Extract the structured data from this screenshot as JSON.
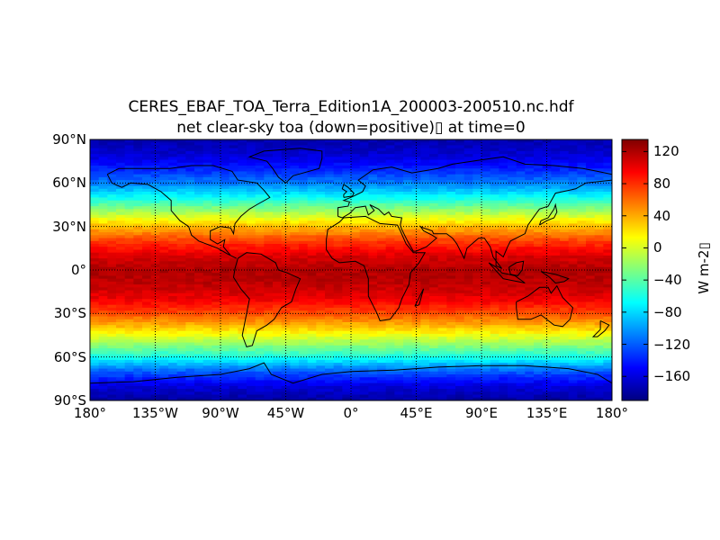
{
  "title": {
    "line1": "CERES_EBAF_TOA_Terra_Edition1A_200003-200510.nc.hdf",
    "line2": "net clear-sky toa (down=positive)▯ at time=0"
  },
  "map": {
    "projection": "cylindrical",
    "lon_range": [
      -180,
      180
    ],
    "lat_range": [
      -90,
      90
    ],
    "grid": true,
    "coastlines": true
  },
  "lat_ticks": [
    {
      "value": 90,
      "label": "90°N"
    },
    {
      "value": 60,
      "label": "60°N"
    },
    {
      "value": 30,
      "label": "30°N"
    },
    {
      "value": 0,
      "label": "0°"
    },
    {
      "value": -30,
      "label": "30°S"
    },
    {
      "value": -60,
      "label": "60°S"
    },
    {
      "value": -90,
      "label": "90°S"
    }
  ],
  "lon_ticks": [
    {
      "value": -180,
      "label": "180°"
    },
    {
      "value": -135,
      "label": "135°W"
    },
    {
      "value": -90,
      "label": "90°W"
    },
    {
      "value": -45,
      "label": "45°W"
    },
    {
      "value": 0,
      "label": "0°"
    },
    {
      "value": 45,
      "label": "45°E"
    },
    {
      "value": 90,
      "label": "90°E"
    },
    {
      "value": 135,
      "label": "135°E"
    },
    {
      "value": 180,
      "label": "180°"
    }
  ],
  "colorbar": {
    "colormap": "jet",
    "range": [
      -190,
      135
    ],
    "units": "W m-2▯",
    "ticks": [
      {
        "value": 120,
        "label": "120"
      },
      {
        "value": 80,
        "label": "80"
      },
      {
        "value": 40,
        "label": "40"
      },
      {
        "value": 0,
        "label": "0"
      },
      {
        "value": -40,
        "label": "−40"
      },
      {
        "value": -80,
        "label": "−80"
      },
      {
        "value": -120,
        "label": "−120"
      },
      {
        "value": -160,
        "label": "−160"
      }
    ]
  },
  "chart_data": {
    "type": "heatmap",
    "title": "CERES_EBAF_TOA_Terra_Edition1A_200003-200510.nc.hdf",
    "subtitle": "net clear-sky toa (down=positive)▯ at time=0",
    "zlabel": "W m-2▯",
    "zlim": [
      -190,
      135
    ],
    "zonal_profile": {
      "lat": [
        90,
        80,
        70,
        60,
        50,
        40,
        30,
        20,
        10,
        0,
        -10,
        -20,
        -30,
        -40,
        -50,
        -60,
        -70,
        -80,
        -90
      ],
      "value": [
        -175,
        -165,
        -140,
        -110,
        -65,
        -15,
        35,
        75,
        105,
        120,
        115,
        100,
        70,
        30,
        -15,
        -60,
        -120,
        -160,
        -180
      ]
    }
  }
}
